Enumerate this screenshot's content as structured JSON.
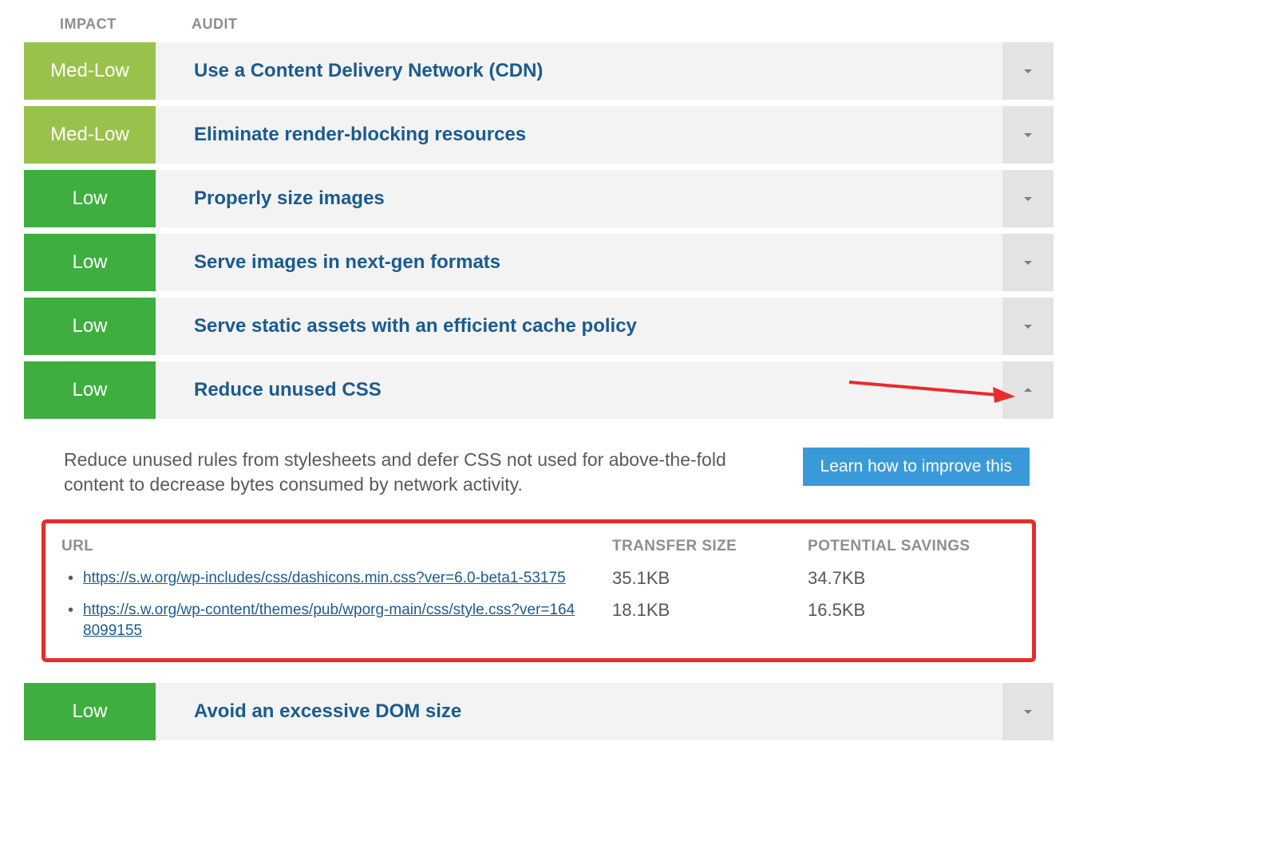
{
  "headers": {
    "impact": "IMPACT",
    "audit": "AUDIT"
  },
  "colors": {
    "impact_medlow": "#99c24d",
    "impact_low": "#3eaf3e",
    "row_bg": "#f3f3f3",
    "chevron_bg": "#e3e3e3",
    "title_link": "#1a5b8f",
    "header_text": "#8a8f94",
    "learn_btn": "#3a9ad9",
    "highlight_border": "#e92b2b",
    "arrow": "#e92b2b"
  },
  "audits": [
    {
      "impact": "Med-Low",
      "impact_class": "medlow",
      "title": "Use a Content Delivery Network (CDN)",
      "expanded": false
    },
    {
      "impact": "Med-Low",
      "impact_class": "medlow",
      "title": "Eliminate render-blocking resources",
      "expanded": false
    },
    {
      "impact": "Low",
      "impact_class": "low",
      "title": "Properly size images",
      "expanded": false
    },
    {
      "impact": "Low",
      "impact_class": "low",
      "title": "Serve images in next-gen formats",
      "expanded": false
    },
    {
      "impact": "Low",
      "impact_class": "low",
      "title": "Serve static assets with an efficient cache policy",
      "expanded": false
    },
    {
      "impact": "Low",
      "impact_class": "low",
      "title": "Reduce unused CSS",
      "expanded": true,
      "has_arrow": true
    }
  ],
  "expanded": {
    "description": "Reduce unused rules from stylesheets and defer CSS not used for above-the-fold content to decrease bytes consumed by network activity.",
    "learn_button": "Learn how to improve this",
    "table": {
      "columns": {
        "url": "URL",
        "transfer_size": "TRANSFER SIZE",
        "potential_savings": "POTENTIAL SAVINGS"
      },
      "rows": [
        {
          "url": "https://s.w.org/wp-includes/css/dashicons.min.css?ver=6.0-beta1-53175",
          "transfer_size": "35.1KB",
          "potential_savings": "34.7KB"
        },
        {
          "url": "https://s.w.org/wp-content/themes/pub/wporg-main/css/style.css?ver=1648099155",
          "transfer_size": "18.1KB",
          "potential_savings": "16.5KB"
        }
      ]
    }
  },
  "audit_after": {
    "impact": "Low",
    "impact_class": "low",
    "title": "Avoid an excessive DOM size",
    "expanded": false
  }
}
